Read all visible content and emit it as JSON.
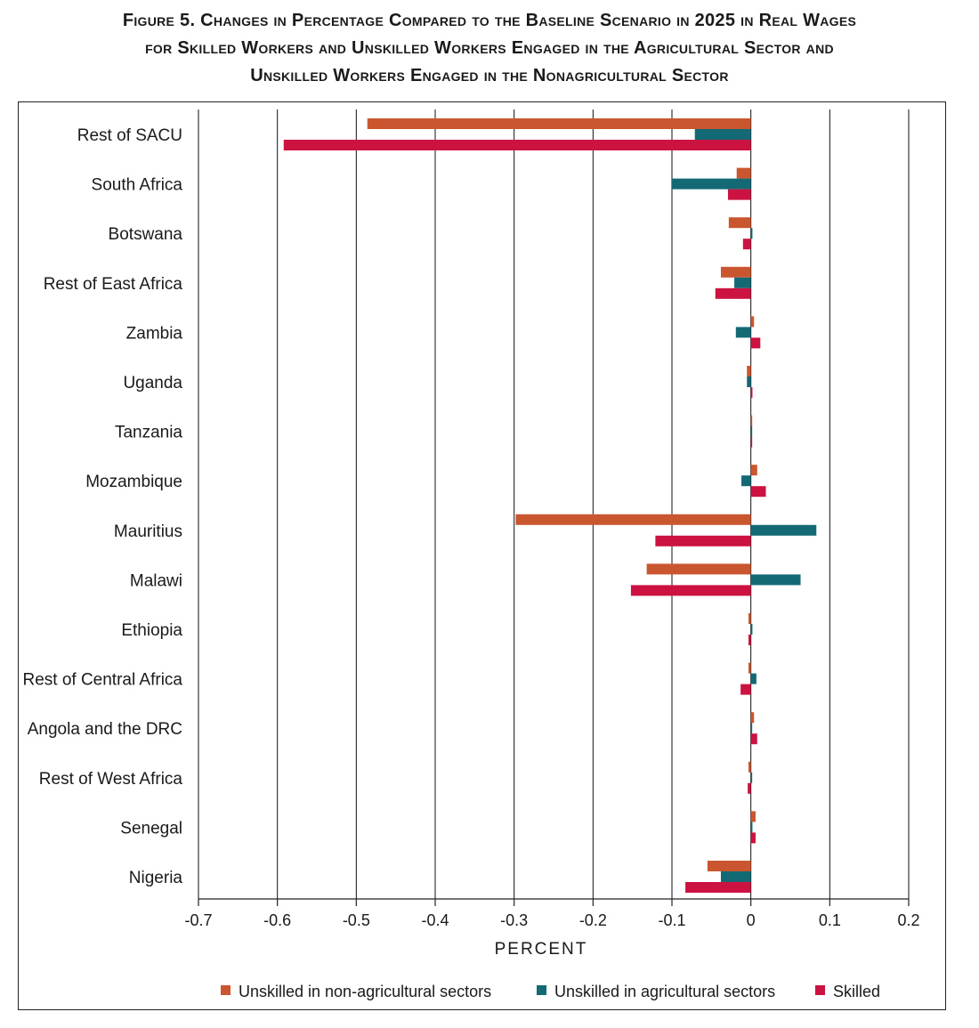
{
  "title_lines": [
    "Figure 5. Changes in Percentage Compared to the Baseline Scenario in 2025 in Real Wages",
    "for Skilled Workers and Unskilled Workers Engaged in the Agricultural Sector and",
    "Unskilled Workers Engaged in the Nonagricultural Sector"
  ],
  "chart_data": {
    "type": "bar",
    "orientation": "horizontal",
    "title": "Figure 5. Changes in Percentage Compared to the Baseline Scenario in 2025 in Real Wages for Skilled Workers and Unskilled Workers Engaged in the Agricultural Sector and Unskilled Workers Engaged in the Nonagricultural Sector",
    "xlabel": "PERCENT",
    "ylabel": "",
    "xlim": [
      -0.7,
      0.2
    ],
    "xticks": [
      -0.7,
      -0.6,
      -0.5,
      -0.4,
      -0.3,
      -0.2,
      -0.1,
      0,
      0.1,
      0.2
    ],
    "xtick_labels": [
      "-0.7",
      "-0.6",
      "-0.5",
      "-0.4",
      "-0.3",
      "-0.2",
      "-0.1",
      "0",
      "0.1",
      "0.2"
    ],
    "grid": "vertical",
    "legend_position": "bottom",
    "categories": [
      "Rest of SACU",
      "South Africa",
      "Botswana",
      "Rest of East Africa",
      "Zambia",
      "Uganda",
      "Tanzania",
      "Mozambique",
      "Mauritius",
      "Malawi",
      "Ethiopia",
      "Rest of Central Africa",
      "Angola and the DRC",
      "Rest of West Africa",
      "Senegal",
      "Nigeria"
    ],
    "series": [
      {
        "name": "Unskilled in non-agricultural sectors",
        "color": "#c9562e",
        "values": [
          -0.486,
          -0.018,
          -0.028,
          -0.038,
          0.004,
          -0.005,
          0.0,
          0.008,
          -0.298,
          -0.132,
          -0.003,
          -0.003,
          0.004,
          -0.003,
          0.006,
          -0.055
        ]
      },
      {
        "name": "Unskilled in agricultural sectors",
        "color": "#136a75",
        "values": [
          -0.071,
          -0.1,
          0.002,
          -0.021,
          -0.019,
          -0.005,
          0.001,
          -0.012,
          0.083,
          0.063,
          0.002,
          0.007,
          0.001,
          0.001,
          0.002,
          -0.038
        ]
      },
      {
        "name": "Skilled",
        "color": "#cc1240",
        "values": [
          -0.592,
          -0.029,
          -0.01,
          -0.045,
          0.012,
          0.002,
          0.0,
          0.019,
          -0.121,
          -0.152,
          -0.003,
          -0.013,
          0.008,
          -0.004,
          0.006,
          -0.083
        ]
      }
    ]
  }
}
